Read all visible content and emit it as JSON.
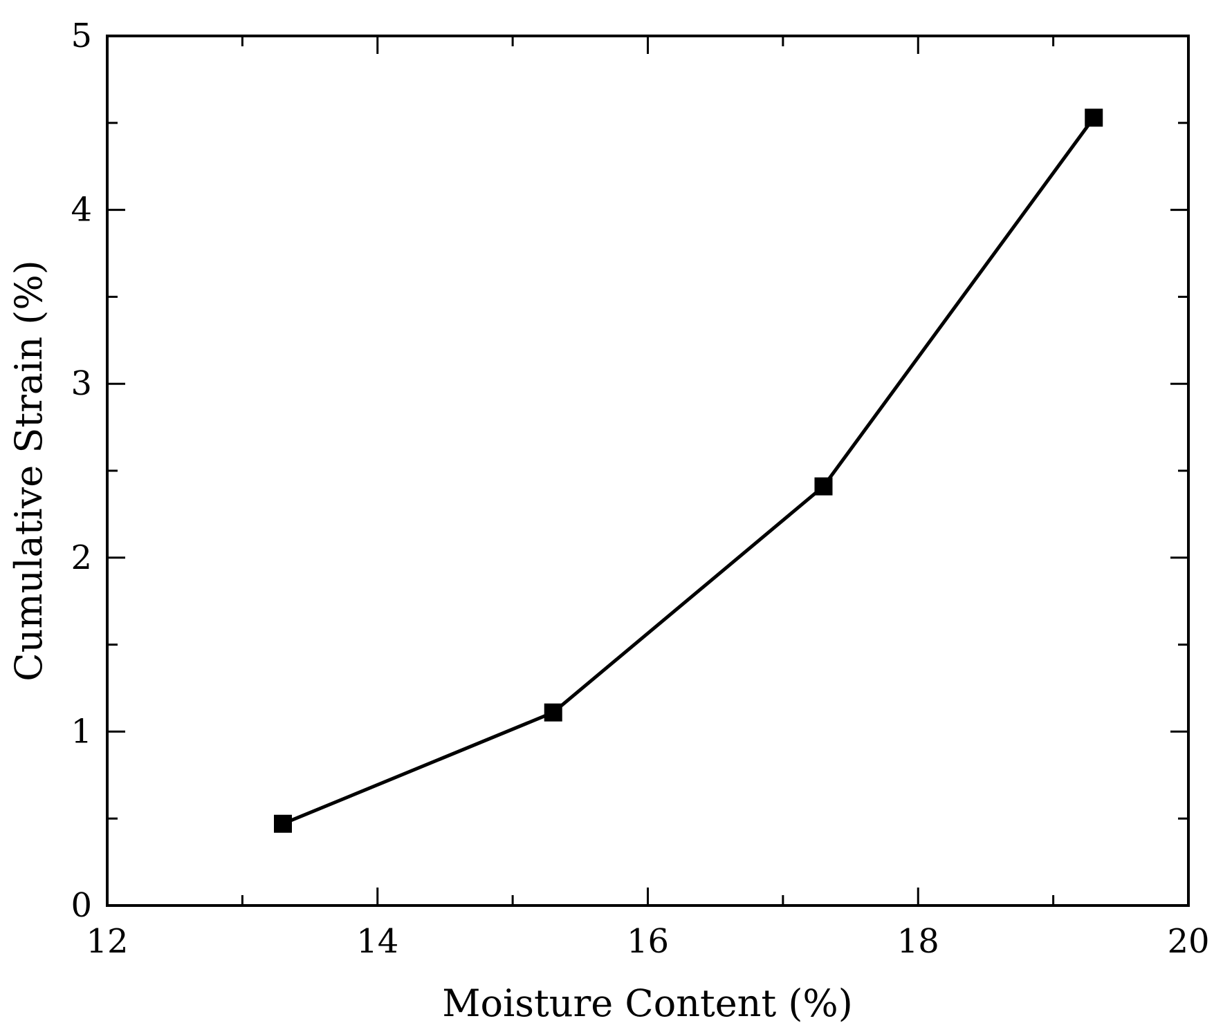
{
  "chart_data": {
    "type": "line",
    "title": "",
    "xlabel": "Moisture Content (%)",
    "ylabel": "Cumulative Strain (%)",
    "xlim": [
      12,
      20
    ],
    "ylim": [
      0,
      5
    ],
    "x_ticks": [
      12,
      14,
      16,
      18,
      20
    ],
    "y_ticks": [
      0,
      1,
      2,
      3,
      4,
      5
    ],
    "x_minor_step": 1,
    "y_minor_step": 0.5,
    "grid": false,
    "marker": "square",
    "series": [
      {
        "x": [
          13.3,
          15.3,
          17.3,
          19.3
        ],
        "y": [
          0.47,
          1.11,
          2.41,
          4.53
        ]
      }
    ],
    "color": "#000000"
  }
}
